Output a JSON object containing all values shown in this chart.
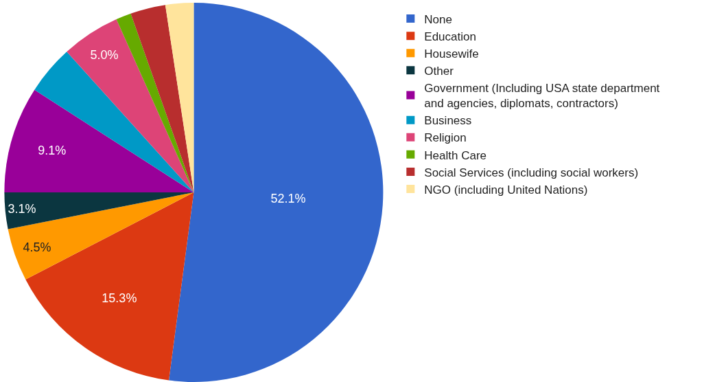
{
  "chart_data": {
    "type": "pie",
    "categories": [
      "None",
      "Education",
      "Housewife",
      "Other",
      "Government (Including USA state department and agencies, diplomats, contractors)",
      "Business",
      "Religion",
      "Health Care",
      "Social Services (including social workers)",
      "NGO (including United Nations)"
    ],
    "values": [
      52.1,
      15.3,
      4.5,
      3.1,
      9.1,
      4.2,
      5.0,
      1.3,
      3.0,
      2.4
    ],
    "colors": [
      "#3366cc",
      "#dc3912",
      "#ff9900",
      "#0b3640",
      "#990099",
      "#0099c6",
      "#dd4477",
      "#66aa00",
      "#b82e2e",
      "#ffe49c"
    ],
    "value_labels": [
      "52.1%",
      "15.3%",
      "4.5%",
      "3.1%",
      "9.1%",
      null,
      "5.0%",
      null,
      null,
      null
    ],
    "legend": "top right"
  }
}
